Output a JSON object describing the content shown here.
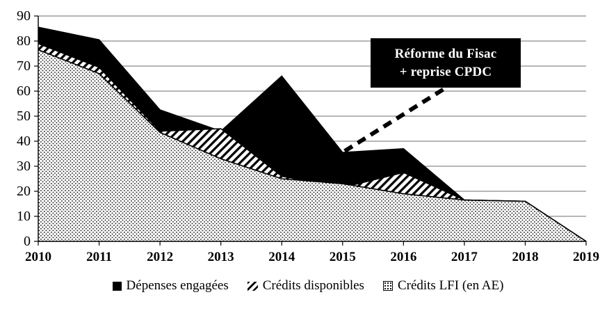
{
  "chart_data": {
    "type": "area",
    "mode": "overlapping",
    "x": [
      2010,
      2011,
      2012,
      2013,
      2014,
      2015,
      2016,
      2017,
      2018,
      2019
    ],
    "series": [
      {
        "name": "Dépenses engagées",
        "style": "solid-black",
        "values": [
          85.5,
          80.5,
          52.5,
          44,
          66,
          35.5,
          37,
          16.5,
          16,
          0
        ]
      },
      {
        "name": "Crédits disponibles",
        "style": "diagonal-hatch",
        "values": [
          79,
          69.5,
          44,
          45,
          26,
          21.5,
          27.5,
          16.5,
          16,
          0
        ]
      },
      {
        "name": "Crédits LFI (en AE)",
        "style": "dotted-fill",
        "values": [
          76.5,
          67,
          43.5,
          33,
          25,
          23,
          19,
          16.5,
          16,
          0
        ]
      }
    ],
    "title": "",
    "xlabel": "",
    "ylabel": "",
    "ylim": [
      0,
      90
    ],
    "ytick_step": 10,
    "grid": "horizontal",
    "legend_position": "bottom",
    "colors": {
      "area_black": "#000000",
      "gridline": "#8a8a8a",
      "axis": "#000000",
      "background": "#ffffff"
    }
  },
  "annotation": {
    "line1": "Réforme du Fisac",
    "line2": "+ reprise CPDC",
    "target_year": 2015,
    "target_value": 35.5,
    "box_color": "#000000",
    "text_color": "#ffffff"
  }
}
